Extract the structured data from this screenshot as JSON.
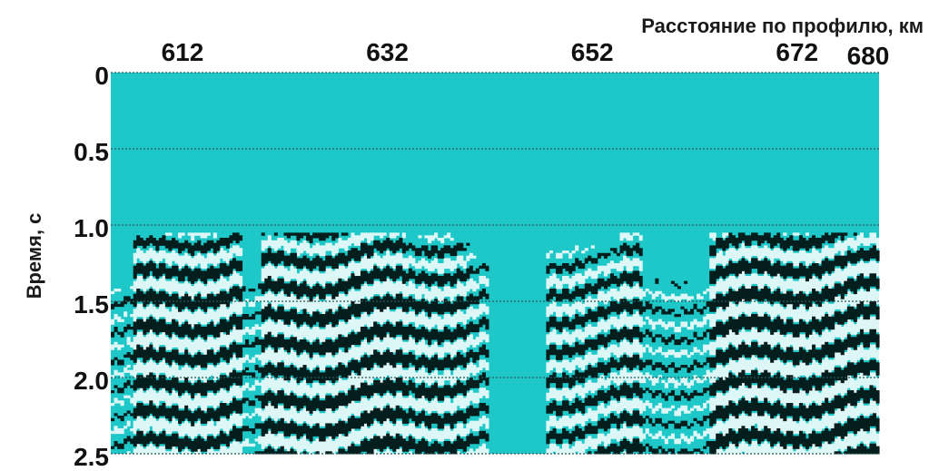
{
  "chart_data": {
    "type": "heatmap",
    "subtype": "seismic-section",
    "xlabel": "Расстояние по профилю, км",
    "ylabel": "Время, с",
    "x_ticks": [
      "612",
      "632",
      "652",
      "672",
      "680"
    ],
    "y_ticks": [
      "0",
      "0.5",
      "1.0",
      "1.5",
      "2.0",
      "2.5"
    ],
    "xlim": [
      605,
      680
    ],
    "ylim": [
      0,
      2.5
    ],
    "y_reversed": true,
    "grid": true,
    "colors": {
      "background": "#1ec8c8",
      "positive_wiggle": "#000000",
      "negative_wiggle": "#ffffff",
      "grid": "#2a5a5a"
    }
  }
}
